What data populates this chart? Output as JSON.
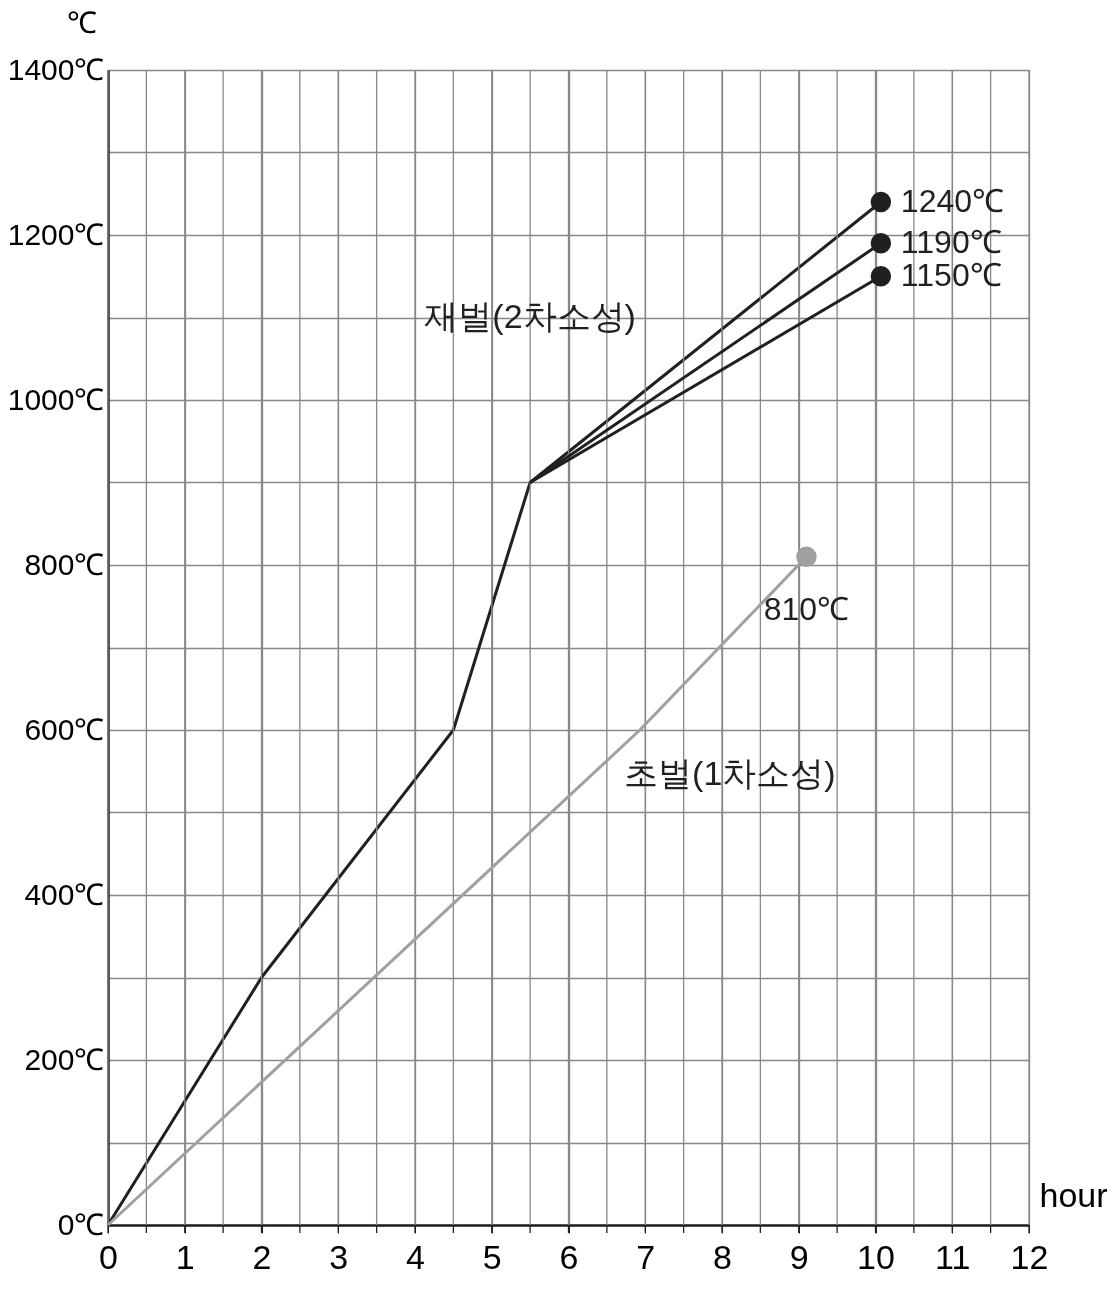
{
  "chart_data": {
    "type": "line",
    "xlabel": "hour",
    "ylabel": "℃",
    "xlim": [
      0,
      12
    ],
    "ylim": [
      0,
      1400
    ],
    "xticks": [
      0,
      {
        "value": 0.5,
        "label": null
      },
      1,
      {
        "value": 1.5,
        "label": null
      },
      2,
      {
        "value": 2.5,
        "label": null
      },
      3,
      {
        "value": 3.5,
        "label": null
      },
      4,
      {
        "value": 4.5,
        "label": null
      },
      5,
      {
        "value": 5.5,
        "label": null
      },
      6,
      {
        "value": 6.5,
        "label": null
      },
      7,
      {
        "value": 7.5,
        "label": null
      },
      8,
      {
        "value": 8.5,
        "label": null
      },
      9,
      {
        "value": 9.5,
        "label": null
      },
      10,
      {
        "value": 10.5,
        "label": null
      },
      11,
      {
        "value": 11.5,
        "label": null
      },
      12
    ],
    "yticks": [
      {
        "value": 0,
        "label": "0℃"
      },
      {
        "value": 100,
        "label": null
      },
      {
        "value": 200,
        "label": "200℃"
      },
      {
        "value": 300,
        "label": null
      },
      {
        "value": 400,
        "label": "400℃"
      },
      {
        "value": 500,
        "label": null
      },
      {
        "value": 600,
        "label": "600℃"
      },
      {
        "value": 700,
        "label": null
      },
      {
        "value": 800,
        "label": "800℃"
      },
      {
        "value": 900,
        "label": null
      },
      {
        "value": 1000,
        "label": "1000℃"
      },
      {
        "value": 1100,
        "label": null
      },
      {
        "value": 1200,
        "label": "1200℃"
      },
      {
        "value": 1300,
        "label": null
      },
      {
        "value": 1400,
        "label": "1400℃"
      }
    ],
    "grid": true,
    "series": [
      {
        "name": "재벌(2차소성)",
        "color": "#231f20",
        "x": [
          0,
          2,
          4.5,
          5.5,
          10.07
        ],
        "values": [
          0,
          300,
          600,
          900,
          1240
        ]
      },
      {
        "color": "#231f20",
        "x": [
          5.5,
          10.07
        ],
        "values": [
          900,
          1190
        ]
      },
      {
        "color": "#231f20",
        "x": [
          5.5,
          10.07
        ],
        "values": [
          900,
          1150
        ]
      },
      {
        "name": "초벌(1차소성)",
        "color": "#a0a0a0",
        "x": [
          0,
          6.93,
          9.1
        ],
        "values": [
          0,
          600,
          810
        ]
      },
      {
        "type": "scatter",
        "marker": "circle",
        "color": "#231f20",
        "x": [
          10.07,
          10.07,
          10.07
        ],
        "values": [
          1240,
          1190,
          1150
        ],
        "value_labels": [
          "1240℃",
          "1190℃",
          "1150℃"
        ]
      },
      {
        "type": "scatter",
        "marker": "circle",
        "color": "#a0a0a0",
        "x": [
          9.1
        ],
        "values": [
          810
        ],
        "value_labels": [
          "810℃"
        ]
      }
    ]
  }
}
